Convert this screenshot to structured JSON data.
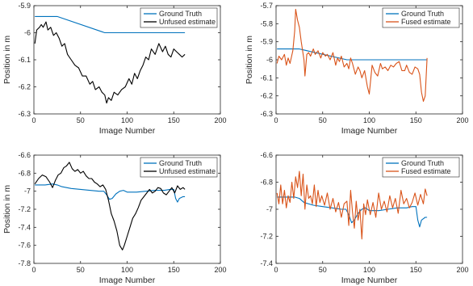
{
  "chart_data": [
    {
      "type": "line",
      "xlabel": "Image Number",
      "ylabel": "Position in m",
      "xlim": [
        0,
        200
      ],
      "ylim": [
        -6.3,
        -5.9
      ],
      "xticks": [
        "0",
        "50",
        "100",
        "150",
        "200"
      ],
      "yticks": [
        "-5.9",
        "-6",
        "-6.1",
        "-6.2",
        "-6.3"
      ],
      "legend_position": "top-right",
      "series": [
        {
          "name": "Ground Truth",
          "color": "#0072BD",
          "x": [
            1,
            25,
            76,
            162
          ],
          "y": [
            -5.94,
            -5.94,
            -6.0,
            -6.0
          ]
        },
        {
          "name": "Unfused estimate",
          "color": "#000000",
          "x": [
            1,
            3,
            6,
            8,
            10,
            13,
            15,
            18,
            21,
            24,
            27,
            30,
            33,
            36,
            40,
            44,
            48,
            52,
            56,
            60,
            63,
            66,
            70,
            73,
            76,
            78,
            80,
            83,
            86,
            90,
            94,
            98,
            102,
            105,
            108,
            111,
            114,
            117,
            120,
            123,
            126,
            130,
            134,
            138,
            141,
            144,
            147,
            150,
            153,
            156,
            159,
            162
          ],
          "y": [
            -6.04,
            -5.99,
            -5.98,
            -5.97,
            -5.98,
            -5.96,
            -5.99,
            -5.98,
            -6.01,
            -6.0,
            -6.02,
            -6.05,
            -6.04,
            -6.08,
            -6.1,
            -6.12,
            -6.13,
            -6.16,
            -6.16,
            -6.19,
            -6.18,
            -6.21,
            -6.2,
            -6.22,
            -6.23,
            -6.26,
            -6.24,
            -6.25,
            -6.22,
            -6.23,
            -6.21,
            -6.2,
            -6.17,
            -6.19,
            -6.15,
            -6.17,
            -6.14,
            -6.12,
            -6.09,
            -6.1,
            -6.06,
            -6.08,
            -6.04,
            -6.07,
            -6.05,
            -6.08,
            -6.09,
            -6.06,
            -6.07,
            -6.08,
            -6.09,
            -6.08
          ]
        }
      ]
    },
    {
      "type": "line",
      "xlabel": "Image Number",
      "ylabel": "Position in m",
      "xlim": [
        0,
        200
      ],
      "ylim": [
        -6.3,
        -5.7
      ],
      "xticks": [
        "0",
        "50",
        "100",
        "150",
        "200"
      ],
      "yticks": [
        "-5.7",
        "-5.8",
        "-5.9",
        "-6",
        "-6.1",
        "-6.2",
        "-6.3"
      ],
      "legend_position": "top-right",
      "series": [
        {
          "name": "Ground Truth",
          "color": "#0072BD",
          "x": [
            1,
            25,
            76,
            162
          ],
          "y": [
            -5.94,
            -5.94,
            -6.0,
            -6.0
          ]
        },
        {
          "name": "Fused estimate",
          "color": "#D95319",
          "x": [
            1,
            3,
            6,
            9,
            11,
            13,
            15,
            18,
            20,
            21,
            23,
            25,
            27,
            30,
            31,
            33,
            35,
            37,
            40,
            42,
            45,
            48,
            50,
            53,
            55,
            58,
            61,
            64,
            66,
            68,
            70,
            73,
            76,
            78,
            80,
            82,
            85,
            88,
            90,
            92,
            95,
            98,
            100,
            103,
            106,
            109,
            112,
            114,
            117,
            120,
            123,
            126,
            129,
            132,
            135,
            138,
            140,
            143,
            146,
            149,
            152,
            154,
            156,
            158,
            160,
            162
          ],
          "y": [
            -6.02,
            -5.98,
            -6.0,
            -5.97,
            -6.03,
            -5.99,
            -6.02,
            -5.95,
            -5.84,
            -5.72,
            -5.78,
            -5.82,
            -5.9,
            -6.0,
            -6.09,
            -5.97,
            -5.96,
            -5.98,
            -5.94,
            -5.97,
            -5.95,
            -5.99,
            -5.96,
            -5.98,
            -5.97,
            -6.0,
            -5.96,
            -6.03,
            -5.99,
            -6.01,
            -5.98,
            -6.04,
            -6.02,
            -6.05,
            -5.99,
            -6.02,
            -6.08,
            -6.04,
            -6.06,
            -6.1,
            -6.06,
            -6.15,
            -6.19,
            -6.03,
            -6.07,
            -6.09,
            -6.02,
            -6.05,
            -6.04,
            -6.06,
            -6.03,
            -6.04,
            -6.02,
            -6.01,
            -6.06,
            -6.06,
            -6.03,
            -6.07,
            -6.08,
            -6.04,
            -6.05,
            -6.08,
            -6.18,
            -6.23,
            -6.2,
            -5.99
          ]
        }
      ]
    },
    {
      "type": "line",
      "xlabel": "Image Number",
      "ylabel": "Position in m",
      "xlim": [
        0,
        200
      ],
      "ylim": [
        -7.8,
        -6.6
      ],
      "xticks": [
        "0",
        "50",
        "100",
        "150",
        "200"
      ],
      "yticks": [
        "-6.6",
        "-6.8",
        "-7",
        "-7.2",
        "-7.4",
        "-7.6",
        "-7.8"
      ],
      "legend_position": "top-right",
      "series": [
        {
          "name": "Ground Truth",
          "color": "#0072BD",
          "x": [
            1,
            12,
            20,
            25,
            30,
            40,
            50,
            60,
            70,
            75,
            78,
            81,
            84,
            88,
            92,
            96,
            100,
            105,
            110,
            120,
            130,
            140,
            146,
            150,
            152,
            154,
            156,
            158,
            160,
            162
          ],
          "y": [
            -6.93,
            -6.93,
            -6.92,
            -6.93,
            -6.95,
            -6.97,
            -6.98,
            -6.99,
            -7.0,
            -7.0,
            -7.04,
            -7.09,
            -7.08,
            -7.03,
            -7.0,
            -6.99,
            -7.01,
            -7.01,
            -7.01,
            -7.0,
            -6.99,
            -6.99,
            -6.98,
            -6.98,
            -7.08,
            -7.12,
            -7.08,
            -7.07,
            -7.06,
            -7.06
          ]
        },
        {
          "name": "Unfused estimate",
          "color": "#000000",
          "x": [
            1,
            5,
            9,
            13,
            17,
            20,
            23,
            26,
            29,
            32,
            35,
            38,
            41,
            44,
            47,
            50,
            53,
            56,
            59,
            62,
            65,
            68,
            71,
            74,
            77,
            80,
            83,
            86,
            89,
            92,
            95,
            97,
            100,
            103,
            106,
            109,
            112,
            115,
            118,
            121,
            124,
            127,
            130,
            133,
            136,
            139,
            142,
            145,
            148,
            151,
            154,
            157,
            160,
            162
          ],
          "y": [
            -6.92,
            -6.86,
            -6.82,
            -6.84,
            -6.9,
            -6.96,
            -6.88,
            -6.82,
            -6.8,
            -6.74,
            -6.72,
            -6.68,
            -6.75,
            -6.78,
            -6.76,
            -6.8,
            -6.78,
            -6.83,
            -6.86,
            -6.86,
            -6.9,
            -6.92,
            -6.95,
            -6.93,
            -6.98,
            -7.1,
            -7.25,
            -7.33,
            -7.44,
            -7.6,
            -7.65,
            -7.6,
            -7.5,
            -7.4,
            -7.3,
            -7.25,
            -7.18,
            -7.1,
            -7.06,
            -7.02,
            -6.98,
            -7.02,
            -7.0,
            -6.96,
            -6.97,
            -7.02,
            -7.04,
            -7.0,
            -6.96,
            -7.02,
            -6.94,
            -6.98,
            -6.96,
            -6.98
          ]
        }
      ]
    },
    {
      "type": "line",
      "xlabel": "Image Number",
      "ylabel": "",
      "xlim": [
        0,
        200
      ],
      "ylim": [
        -7.4,
        -6.6
      ],
      "xticks": [
        "0",
        "50",
        "100",
        "150",
        "200"
      ],
      "yticks": [
        "-6.6",
        "-6.8",
        "-7",
        "-7.2",
        "-7.4"
      ],
      "legend_position": "top-right",
      "series": [
        {
          "name": "Ground Truth",
          "color": "#0072BD",
          "x": [
            1,
            12,
            20,
            25,
            30,
            40,
            50,
            60,
            70,
            75,
            78,
            81,
            84,
            88,
            92,
            96,
            100,
            105,
            110,
            120,
            130,
            140,
            146,
            150,
            152,
            154,
            156,
            158,
            160,
            162
          ],
          "y": [
            -6.91,
            -6.91,
            -6.91,
            -6.92,
            -6.95,
            -6.97,
            -6.98,
            -6.99,
            -7.0,
            -7.0,
            -7.04,
            -7.1,
            -7.08,
            -7.03,
            -7.0,
            -6.99,
            -7.01,
            -7.01,
            -7.01,
            -7.0,
            -6.99,
            -6.99,
            -6.98,
            -6.98,
            -7.08,
            -7.13,
            -7.08,
            -7.07,
            -7.06,
            -7.06
          ]
        },
        {
          "name": "Fused estimate",
          "color": "#D95319",
          "x": [
            1,
            3,
            5,
            7,
            9,
            11,
            13,
            15,
            17,
            19,
            21,
            23,
            25,
            27,
            29,
            31,
            33,
            35,
            37,
            39,
            41,
            43,
            45,
            47,
            49,
            52,
            55,
            58,
            61,
            64,
            67,
            70,
            73,
            76,
            78,
            80,
            82,
            84,
            86,
            88,
            90,
            92,
            94,
            96,
            98,
            101,
            104,
            107,
            110,
            113,
            116,
            119,
            122,
            125,
            128,
            131,
            134,
            137,
            140,
            143,
            146,
            149,
            152,
            155,
            158,
            160,
            162
          ],
          "y": [
            -6.88,
            -6.96,
            -6.82,
            -6.96,
            -6.86,
            -6.99,
            -6.9,
            -6.95,
            -6.8,
            -6.92,
            -6.76,
            -6.84,
            -6.72,
            -6.9,
            -6.74,
            -7.0,
            -6.82,
            -6.92,
            -6.9,
            -6.96,
            -6.82,
            -6.98,
            -6.86,
            -6.95,
            -6.9,
            -6.97,
            -6.88,
            -7.0,
            -6.92,
            -7.02,
            -6.95,
            -7.06,
            -6.96,
            -6.94,
            -7.12,
            -6.86,
            -7.02,
            -7.14,
            -6.94,
            -7.08,
            -7.0,
            -7.22,
            -6.96,
            -7.04,
            -6.93,
            -7.04,
            -6.95,
            -7.06,
            -6.88,
            -7.0,
            -6.94,
            -7.02,
            -6.9,
            -6.99,
            -6.92,
            -7.03,
            -6.86,
            -6.96,
            -6.92,
            -6.99,
            -6.95,
            -6.88,
            -6.97,
            -6.89,
            -6.96,
            -6.85,
            -6.9
          ]
        }
      ]
    }
  ]
}
